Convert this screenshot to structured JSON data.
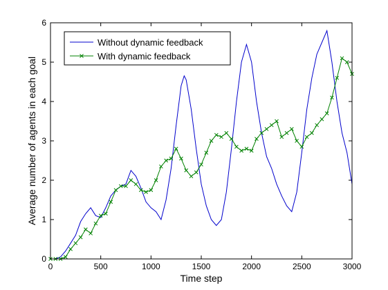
{
  "chart_data": {
    "type": "line",
    "title": "",
    "xlabel": "Time step",
    "ylabel": "Average number of agents in each goal",
    "xlim": [
      0,
      3000
    ],
    "ylim": [
      0,
      6
    ],
    "xticks": [
      0,
      500,
      1000,
      1500,
      2000,
      2500,
      3000
    ],
    "yticks": [
      0,
      1,
      2,
      3,
      4,
      5,
      6
    ],
    "grid": false,
    "legend_position": "top-left",
    "series": [
      {
        "name": "Without dynamic feedback",
        "color": "#0000cc",
        "marker": "none",
        "x": [
          0,
          50,
          100,
          150,
          200,
          250,
          300,
          350,
          400,
          450,
          500,
          550,
          600,
          650,
          700,
          750,
          800,
          850,
          900,
          950,
          1000,
          1050,
          1100,
          1150,
          1200,
          1250,
          1300,
          1330,
          1350,
          1400,
          1450,
          1500,
          1550,
          1600,
          1650,
          1700,
          1750,
          1800,
          1850,
          1900,
          1950,
          2000,
          2050,
          2100,
          2150,
          2200,
          2250,
          2300,
          2350,
          2400,
          2450,
          2500,
          2550,
          2600,
          2650,
          2700,
          2750,
          2800,
          2850,
          2900,
          2950,
          3000
        ],
        "y": [
          0,
          0,
          0.05,
          0.2,
          0.4,
          0.6,
          0.95,
          1.15,
          1.3,
          1.1,
          1.05,
          1.3,
          1.6,
          1.75,
          1.85,
          1.9,
          2.25,
          2.1,
          1.8,
          1.45,
          1.3,
          1.2,
          1.0,
          1.5,
          2.3,
          3.4,
          4.4,
          4.65,
          4.55,
          3.8,
          2.8,
          1.9,
          1.35,
          1.0,
          0.85,
          1.0,
          1.7,
          2.8,
          4.0,
          5.0,
          5.45,
          5.0,
          4.0,
          3.2,
          2.6,
          2.3,
          1.9,
          1.6,
          1.35,
          1.2,
          1.7,
          2.7,
          3.8,
          4.6,
          5.2,
          5.5,
          5.8,
          5.0,
          4.0,
          3.2,
          2.7,
          1.9
        ]
      },
      {
        "name": "With dynamic feedback",
        "color": "#008000",
        "marker": "x",
        "x": [
          0,
          50,
          100,
          150,
          200,
          250,
          300,
          350,
          400,
          450,
          500,
          550,
          600,
          650,
          700,
          750,
          800,
          850,
          900,
          950,
          1000,
          1050,
          1100,
          1150,
          1200,
          1250,
          1300,
          1350,
          1400,
          1450,
          1500,
          1550,
          1600,
          1650,
          1700,
          1750,
          1800,
          1850,
          1900,
          1950,
          2000,
          2050,
          2100,
          2150,
          2200,
          2250,
          2300,
          2350,
          2400,
          2450,
          2500,
          2550,
          2600,
          2650,
          2700,
          2750,
          2800,
          2850,
          2900,
          2950,
          3000
        ],
        "y": [
          0,
          0,
          0,
          0.05,
          0.25,
          0.4,
          0.55,
          0.75,
          0.65,
          0.9,
          1.1,
          1.15,
          1.45,
          1.75,
          1.85,
          1.85,
          2.0,
          1.9,
          1.75,
          1.7,
          1.75,
          2.0,
          2.35,
          2.5,
          2.55,
          2.8,
          2.55,
          2.25,
          2.1,
          2.2,
          2.4,
          2.7,
          3.0,
          3.15,
          3.1,
          3.2,
          3.05,
          2.85,
          2.75,
          2.8,
          2.75,
          3.05,
          3.2,
          3.3,
          3.4,
          3.5,
          3.1,
          3.2,
          3.3,
          3.0,
          2.85,
          3.1,
          3.2,
          3.4,
          3.55,
          3.7,
          4.1,
          4.6,
          5.1,
          5.0,
          4.7
        ]
      }
    ]
  }
}
